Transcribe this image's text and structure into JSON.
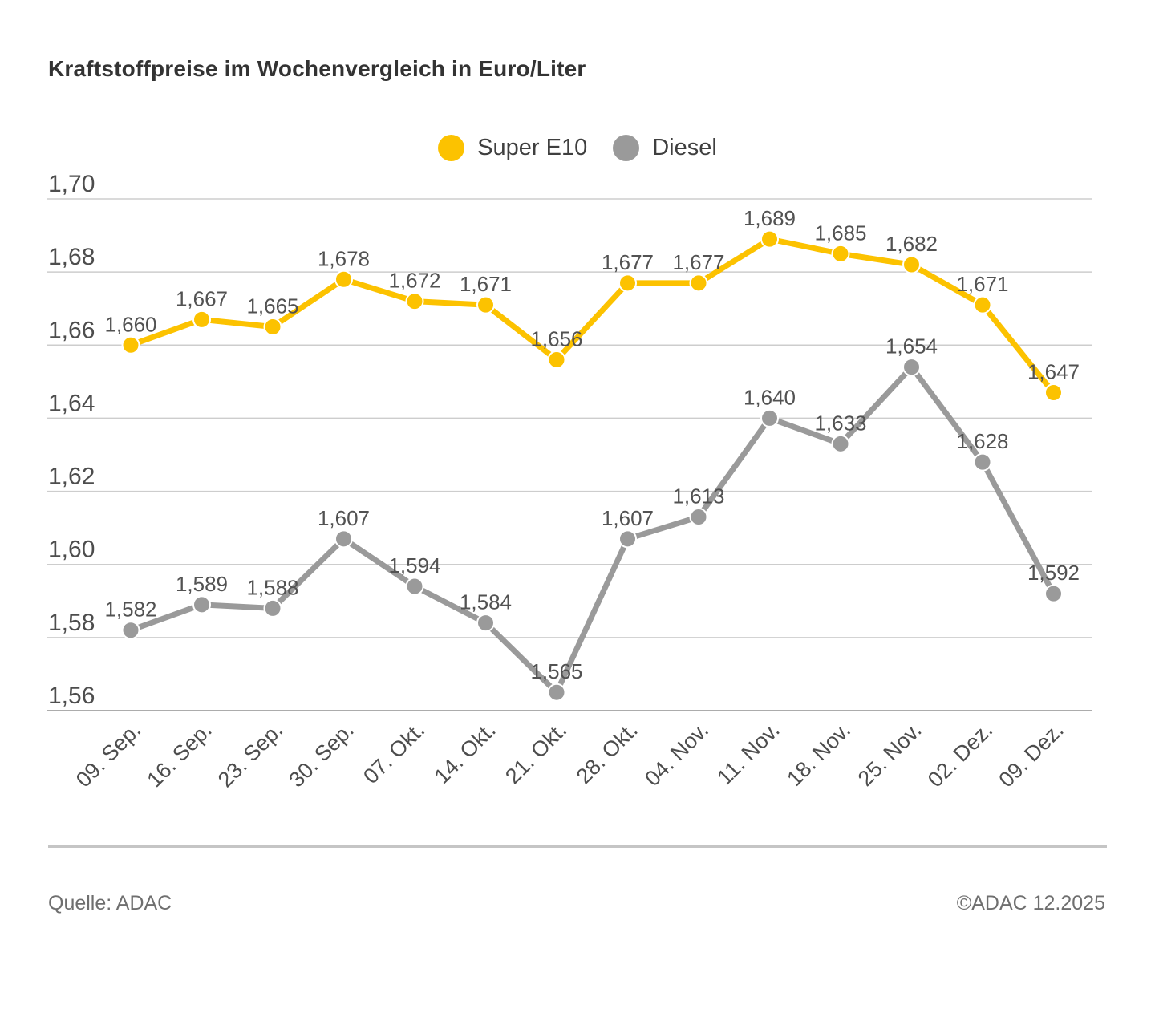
{
  "title": "Kraftstoffpreise im Wochenvergleich in Euro/Liter",
  "legend": {
    "items": [
      {
        "label": "Super E10",
        "color": "#fcc200"
      },
      {
        "label": "Diesel",
        "color": "#9a9a9a"
      }
    ]
  },
  "footer": {
    "source": "Quelle: ADAC",
    "copyright": "©ADAC 12.2025"
  },
  "chart_data": {
    "type": "line",
    "title": "Kraftstoffpreise im Wochenvergleich in Euro/Liter",
    "xlabel": "",
    "ylabel": "Euro/Liter",
    "grid": true,
    "legend_position": "top-center",
    "categories": [
      "09. Sep.",
      "16. Sep.",
      "23. Sep.",
      "30. Sep.",
      "07. Okt.",
      "14. Okt.",
      "21. Okt.",
      "28. Okt.",
      "04. Nov.",
      "11. Nov.",
      "18. Nov.",
      "25. Nov.",
      "02. Dez.",
      "09. Dez."
    ],
    "series": [
      {
        "name": "Super E10",
        "color": "#fcc200",
        "values": [
          1.66,
          1.667,
          1.665,
          1.678,
          1.672,
          1.671,
          1.656,
          1.677,
          1.677,
          1.689,
          1.685,
          1.682,
          1.671,
          1.647
        ],
        "labels": [
          "1,660",
          "1,667",
          "1,665",
          "1,678",
          "1,672",
          "1,671",
          "1,656",
          "1,677",
          "1,677",
          "1,689",
          "1,685",
          "1,682",
          "1,671",
          "1,647"
        ]
      },
      {
        "name": "Diesel",
        "color": "#9a9a9a",
        "values": [
          1.582,
          1.589,
          1.588,
          1.607,
          1.594,
          1.584,
          1.565,
          1.607,
          1.613,
          1.64,
          1.633,
          1.654,
          1.628,
          1.592
        ],
        "labels": [
          "1,582",
          "1,589",
          "1,588",
          "1,607",
          "1,594",
          "1,584",
          "1,565",
          "1,607",
          "1,613",
          "1,640",
          "1,633",
          "1,654",
          "1,628",
          "1,592"
        ]
      }
    ],
    "y_axis": {
      "min": 1.56,
      "max": 1.7,
      "step": 0.02,
      "tick_labels": [
        "1,70",
        "1,68",
        "1,66",
        "1,64",
        "1,62",
        "1,60",
        "1,58",
        "1,56"
      ]
    }
  }
}
